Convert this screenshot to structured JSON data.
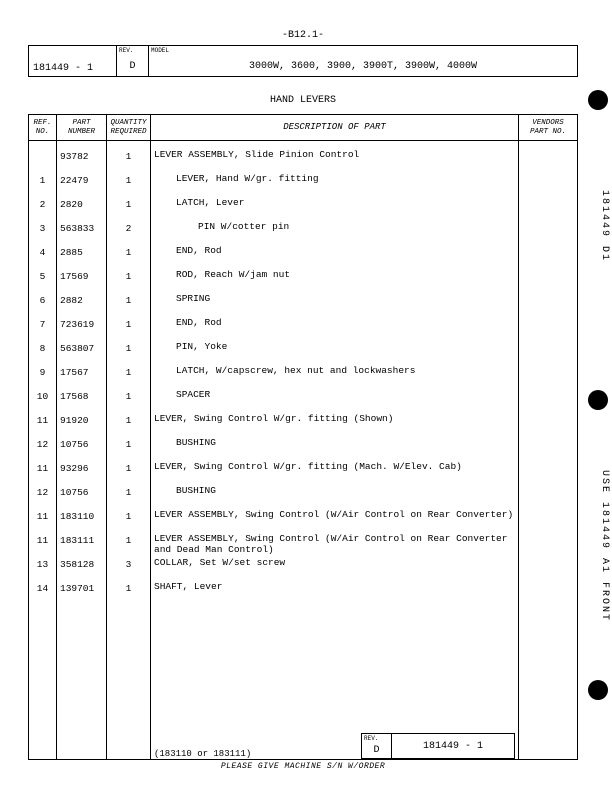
{
  "page_code": "-B12.1-",
  "header": {
    "doc_no": "181449 - 1",
    "rev_label": "REV.",
    "rev": "D",
    "model_label": "MODEL",
    "model": "3000W, 3600, 3900, 3900T, 3900W, 4000W"
  },
  "section_title": "HAND LEVERS",
  "columns": {
    "ref": "REF.\nNO.",
    "part": "PART\nNUMBER",
    "qty": "QUANTITY\nREQUIRED",
    "desc": "DESCRIPTION OF PART",
    "vendor": "VENDORS\nPART NO."
  },
  "rows": [
    {
      "ref": "",
      "part": "93782",
      "qty": "1",
      "desc": "LEVER ASSEMBLY, Slide Pinion Control",
      "indent": 0
    },
    {
      "ref": "1",
      "part": "22479",
      "qty": "1",
      "desc": "LEVER, Hand W/gr. fitting",
      "indent": 1
    },
    {
      "ref": "2",
      "part": "2820",
      "qty": "1",
      "desc": "LATCH, Lever",
      "indent": 1
    },
    {
      "ref": "3",
      "part": "563833",
      "qty": "2",
      "desc": "PIN W/cotter pin",
      "indent": 2
    },
    {
      "ref": "4",
      "part": "2885",
      "qty": "1",
      "desc": "END, Rod",
      "indent": 1
    },
    {
      "ref": "5",
      "part": "17569",
      "qty": "1",
      "desc": "ROD, Reach W/jam nut",
      "indent": 1
    },
    {
      "ref": "6",
      "part": "2882",
      "qty": "1",
      "desc": "SPRING",
      "indent": 1
    },
    {
      "ref": "7",
      "part": "723619",
      "qty": "1",
      "desc": "END, Rod",
      "indent": 1
    },
    {
      "ref": "8",
      "part": "563807",
      "qty": "1",
      "desc": "PIN, Yoke",
      "indent": 1
    },
    {
      "ref": "9",
      "part": "17567",
      "qty": "1",
      "desc": "LATCH, W/capscrew, hex nut and lockwashers",
      "indent": 1
    },
    {
      "ref": "10",
      "part": "17568",
      "qty": "1",
      "desc": "SPACER",
      "indent": 1
    },
    {
      "ref": "11",
      "part": "91920",
      "qty": "1",
      "desc": "LEVER, Swing Control W/gr. fitting (Shown)",
      "indent": 0
    },
    {
      "ref": "12",
      "part": "10756",
      "qty": "1",
      "desc": "BUSHING",
      "indent": 1
    },
    {
      "ref": "11",
      "part": "93296",
      "qty": "1",
      "desc": "LEVER, Swing Control W/gr. fitting (Mach. W/Elev. Cab)",
      "indent": 0
    },
    {
      "ref": "12",
      "part": "10756",
      "qty": "1",
      "desc": "BUSHING",
      "indent": 1
    },
    {
      "ref": "11",
      "part": "183110",
      "qty": "1",
      "desc": "LEVER ASSEMBLY, Swing Control (W/Air Control on Rear Converter)",
      "indent": 0
    },
    {
      "ref": "11",
      "part": "183111",
      "qty": "1",
      "desc": "LEVER ASSEMBLY, Swing Control (W/Air Control on Rear Converter and Dead Man Control)",
      "indent": 0
    },
    {
      "ref": "13",
      "part": "358128",
      "qty": "3",
      "desc": "COLLAR, Set W/set screw",
      "indent": 0
    },
    {
      "ref": "14",
      "part": "139701",
      "qty": "1",
      "desc": "SHAFT, Lever",
      "indent": 0
    }
  ],
  "desc_footer_note": "(183110 or 183111)",
  "footer": {
    "rev_label": "REV.",
    "rev": "D",
    "doc_no": "181449 - 1"
  },
  "bottom_instruction": "PLEASE GIVE MACHINE S/N W/ORDER",
  "side_label_top": "181449 D1",
  "side_label_bottom": "USE 181449 A1 FRONT"
}
